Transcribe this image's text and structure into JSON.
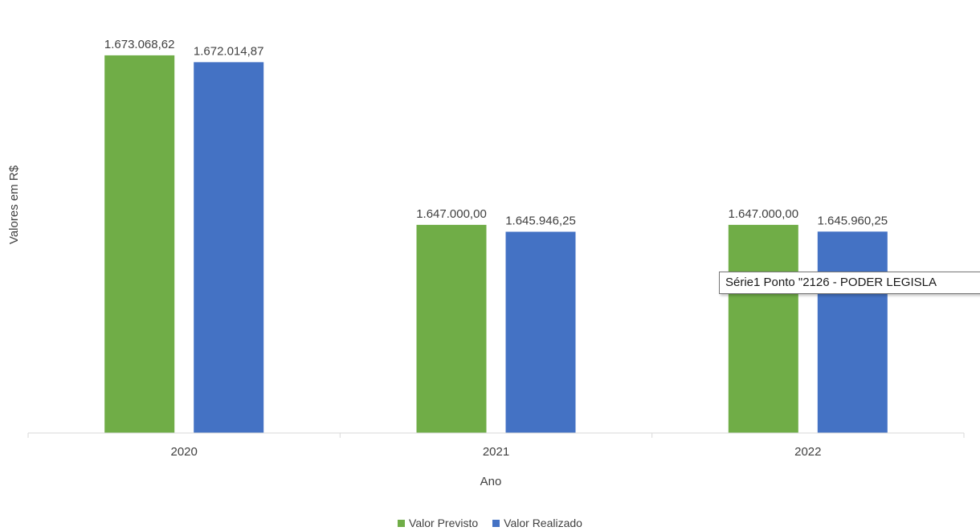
{
  "chart_data": {
    "type": "bar",
    "categories": [
      "2020",
      "2021",
      "2022"
    ],
    "series": [
      {
        "name": "Valor Previsto",
        "color": "#70AD47",
        "values": [
          1673068.62,
          1647000.0,
          1647000.0
        ],
        "labels": [
          "1.673.068,62",
          "1.647.000,00",
          "1.647.000,00"
        ]
      },
      {
        "name": "Valor Realizado",
        "color": "#4472C4",
        "values": [
          1672014.87,
          1645946.25,
          1645960.25
        ],
        "labels": [
          "1.672.014,87",
          "1.645.946,25",
          "1.645.960,25"
        ]
      }
    ],
    "xlabel": "Ano",
    "ylabel": "Valores em R$",
    "ylim": [
      1615000,
      1677500
    ],
    "grid": false,
    "legend_position": "bottom"
  },
  "tooltip": {
    "text": "Série1 Ponto \"2126 - PODER LEGISLA"
  }
}
